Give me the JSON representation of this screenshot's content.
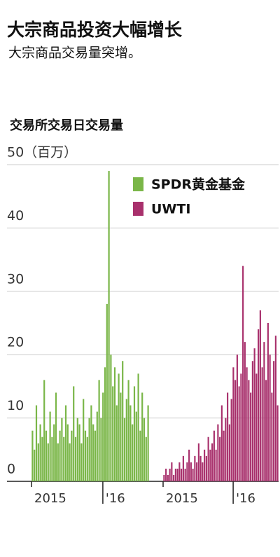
{
  "header": {
    "title": "大宗商品投资大幅增长",
    "subtitle": "大宗商品交易量突增。"
  },
  "chart_data": {
    "type": "bar",
    "title": "交易所交易日交易量",
    "ylim": [
      0,
      50
    ],
    "yticks": [
      0,
      10,
      20,
      30,
      40,
      {
        "value": 50,
        "label": "50（百万）"
      }
    ],
    "grid": true,
    "xlim": [
      0,
      60
    ],
    "xticks": [
      {
        "value": 0,
        "label": "2015"
      },
      {
        "value": 36.4,
        "label": "'16"
      }
    ],
    "legend": "top-right",
    "series": [
      {
        "name": "SPDR黄金基金",
        "color": "#7ab648",
        "values": [
          8,
          5,
          12,
          6,
          9,
          7,
          16,
          8,
          6,
          11,
          7,
          9,
          14,
          6,
          8,
          10,
          7,
          12,
          9,
          6,
          8,
          15,
          7,
          10,
          9,
          6,
          13,
          8,
          7,
          10,
          12,
          9,
          8,
          11,
          16,
          10,
          14,
          18,
          28,
          49,
          20,
          15,
          18,
          12,
          17,
          14,
          19,
          10,
          13,
          16,
          12,
          9,
          15,
          11,
          17,
          8,
          14,
          10,
          7,
          12
        ]
      },
      {
        "name": "UWTI",
        "color": "#a8306c",
        "values": [
          1,
          2,
          1,
          2,
          3,
          1,
          2,
          2,
          3,
          2,
          4,
          2,
          3,
          5,
          3,
          2,
          4,
          3,
          6,
          4,
          3,
          5,
          4,
          7,
          5,
          6,
          8,
          5,
          9,
          7,
          12,
          8,
          10,
          14,
          9,
          13,
          18,
          16,
          20,
          15,
          17,
          34,
          22,
          18,
          16,
          14,
          19,
          21,
          17,
          24,
          27,
          18,
          22,
          16,
          25,
          20,
          14,
          19,
          23,
          12
        ]
      }
    ]
  }
}
